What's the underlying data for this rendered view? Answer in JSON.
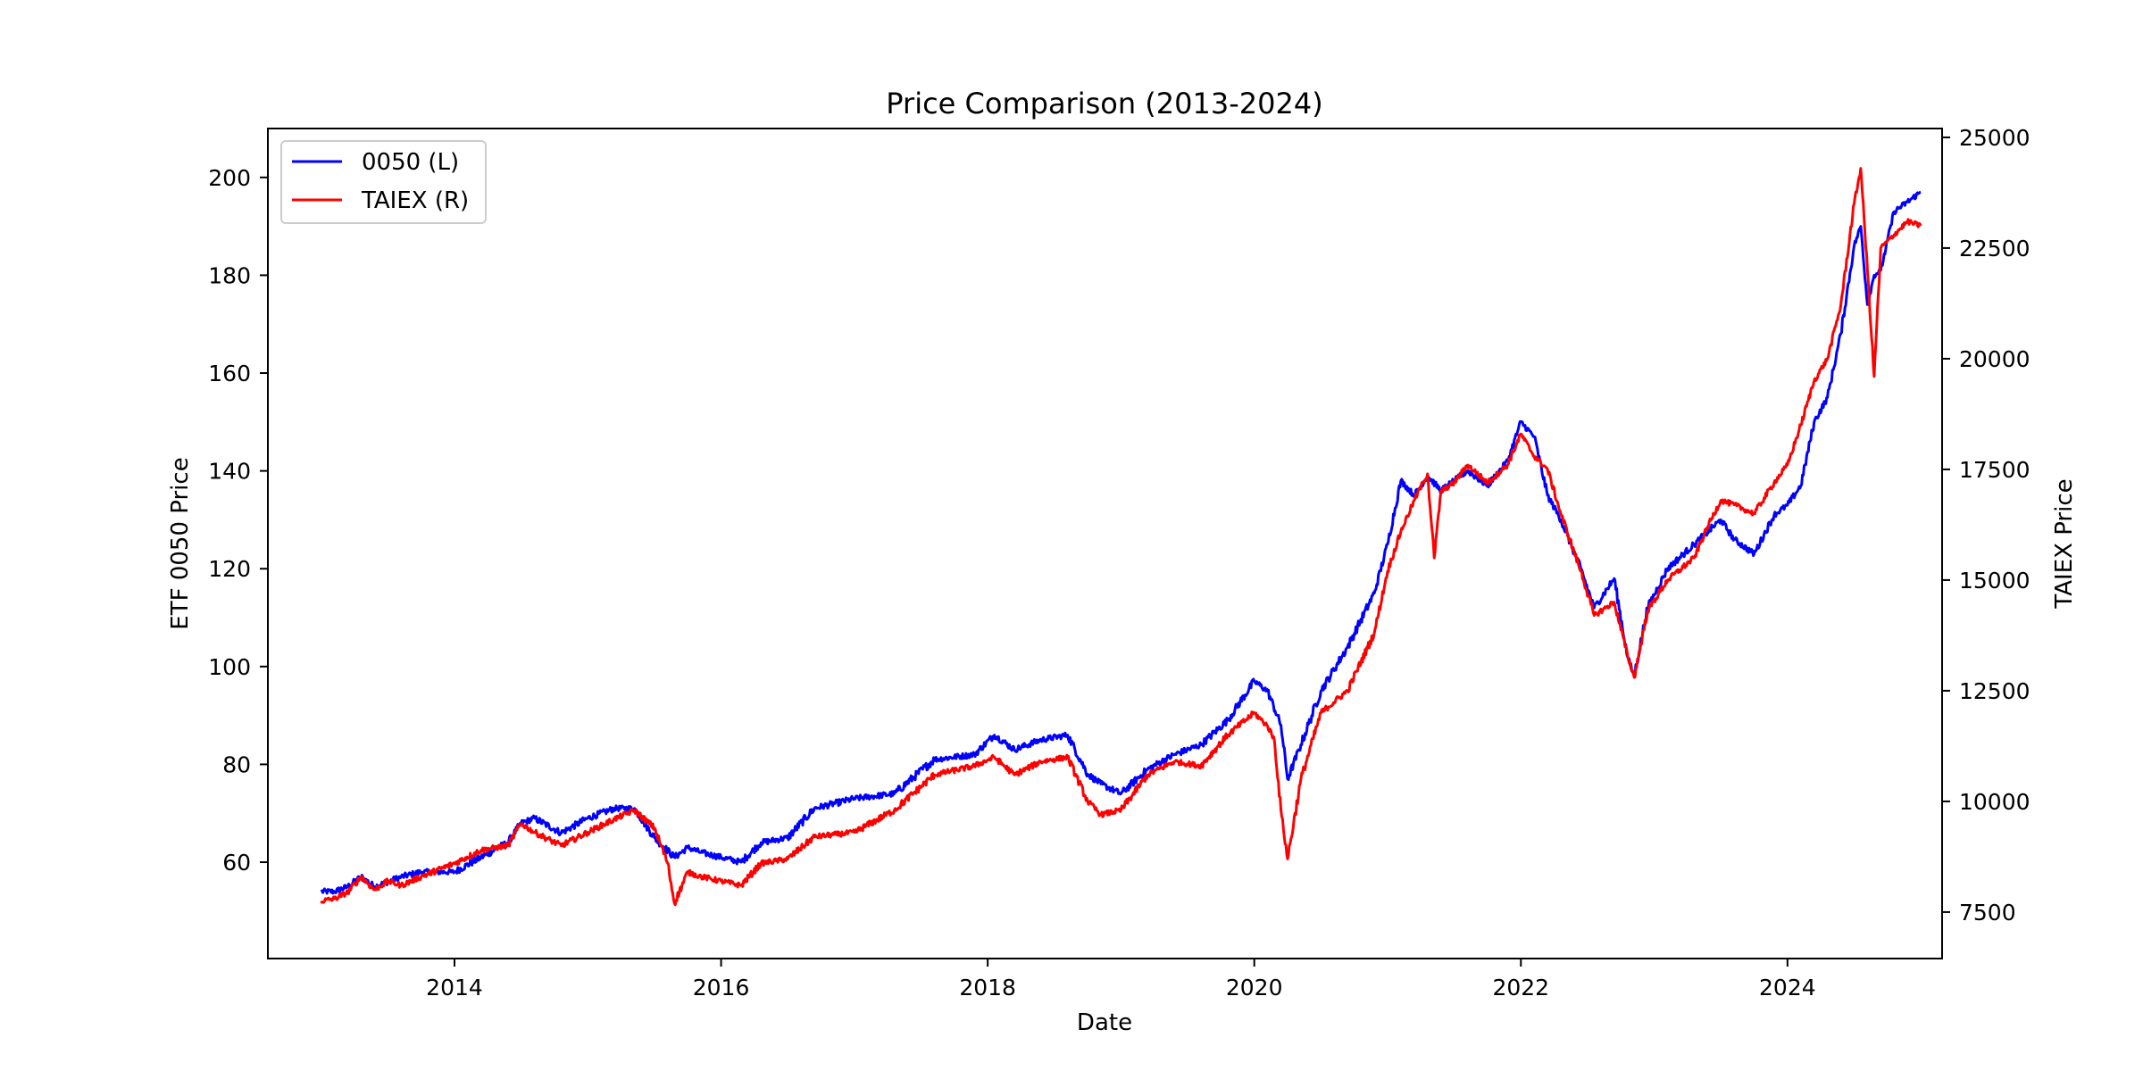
{
  "chart_data": {
    "type": "line",
    "title": "Price Comparison (2013-2024)",
    "xlabel": "Date",
    "ylabel": "ETF 0050 Price",
    "y2label": "TAIEX Price",
    "xlim": [
      2012.6,
      2025.16
    ],
    "ylim": [
      40.3,
      210.0
    ],
    "y2lim": [
      6450,
      25200
    ],
    "x_ticks": [
      2014,
      2016,
      2018,
      2020,
      2022,
      2024
    ],
    "x_tick_labels": [
      "2014",
      "2016",
      "2018",
      "2020",
      "2022",
      "2024"
    ],
    "y_ticks": [
      60,
      80,
      100,
      120,
      140,
      160,
      180,
      200
    ],
    "y_tick_labels": [
      "60",
      "80",
      "100",
      "120",
      "140",
      "160",
      "180",
      "200"
    ],
    "y2_ticks": [
      7500,
      10000,
      12500,
      15000,
      17500,
      20000,
      22500,
      25000
    ],
    "y2_tick_labels": [
      "7500",
      "10000",
      "12500",
      "15000",
      "17500",
      "20000",
      "22500",
      "25000"
    ],
    "legend_position": "upper-left",
    "series": [
      {
        "name": "0050 (L)",
        "axis": "left",
        "color": "#0000ff",
        "x": [
          2013.0,
          2013.1,
          2013.2,
          2013.3,
          2013.4,
          2013.5,
          2013.6,
          2013.75,
          2014.0,
          2014.2,
          2014.4,
          2014.5,
          2014.6,
          2014.8,
          2015.0,
          2015.2,
          2015.35,
          2015.5,
          2015.65,
          2015.75,
          2015.85,
          2016.0,
          2016.15,
          2016.3,
          2016.5,
          2016.7,
          2017.0,
          2017.3,
          2017.6,
          2017.9,
          2018.05,
          2018.2,
          2018.4,
          2018.6,
          2018.75,
          2018.85,
          2019.0,
          2019.2,
          2019.4,
          2019.6,
          2019.8,
          2020.0,
          2020.1,
          2020.2,
          2020.25,
          2020.35,
          2020.5,
          2020.7,
          2020.9,
          2021.0,
          2021.1,
          2021.2,
          2021.3,
          2021.4,
          2021.5,
          2021.6,
          2021.75,
          2021.9,
          2022.0,
          2022.1,
          2022.2,
          2022.3,
          2022.45,
          2022.55,
          2022.7,
          2022.8,
          2022.85,
          2022.95,
          2023.1,
          2023.3,
          2023.5,
          2023.6,
          2023.75,
          2023.9,
          2024.0,
          2024.1,
          2024.2,
          2024.3,
          2024.4,
          2024.5,
          2024.55,
          2024.6,
          2024.65,
          2024.7,
          2024.8,
          2024.9,
          2025.0
        ],
        "values": [
          54,
          54,
          55,
          57,
          55,
          56,
          57,
          58,
          58,
          61,
          64,
          68,
          69,
          66,
          69,
          71,
          71,
          65,
          61,
          63,
          62,
          61,
          60,
          64,
          65,
          71,
          73,
          74,
          81,
          82,
          86,
          83,
          85,
          86,
          78,
          76,
          74,
          79,
          82,
          84,
          89,
          97,
          95,
          88,
          77,
          84,
          95,
          104,
          115,
          125,
          138,
          135,
          139,
          136,
          138,
          140,
          137,
          142,
          150,
          147,
          135,
          130,
          120,
          112,
          118,
          102,
          98,
          112,
          120,
          125,
          130,
          126,
          123,
          131,
          133,
          137,
          150,
          155,
          168,
          186,
          190,
          174,
          180,
          181,
          193,
          195,
          197
        ]
      },
      {
        "name": "TAIEX (R)",
        "axis": "right",
        "color": "#ff0000",
        "x": [
          2013.0,
          2013.1,
          2013.2,
          2013.3,
          2013.4,
          2013.5,
          2013.6,
          2013.75,
          2014.0,
          2014.2,
          2014.4,
          2014.5,
          2014.6,
          2014.8,
          2015.0,
          2015.2,
          2015.35,
          2015.5,
          2015.6,
          2015.65,
          2015.75,
          2015.85,
          2016.0,
          2016.15,
          2016.3,
          2016.5,
          2016.7,
          2017.0,
          2017.3,
          2017.6,
          2017.9,
          2018.05,
          2018.2,
          2018.4,
          2018.6,
          2018.75,
          2018.85,
          2019.0,
          2019.2,
          2019.4,
          2019.6,
          2019.8,
          2020.0,
          2020.1,
          2020.15,
          2020.2,
          2020.25,
          2020.35,
          2020.5,
          2020.7,
          2020.9,
          2021.0,
          2021.1,
          2021.2,
          2021.3,
          2021.35,
          2021.4,
          2021.5,
          2021.6,
          2021.75,
          2021.9,
          2022.0,
          2022.1,
          2022.2,
          2022.3,
          2022.45,
          2022.55,
          2022.7,
          2022.8,
          2022.85,
          2022.95,
          2023.1,
          2023.3,
          2023.4,
          2023.5,
          2023.6,
          2023.75,
          2023.9,
          2024.0,
          2024.1,
          2024.2,
          2024.3,
          2024.4,
          2024.5,
          2024.55,
          2024.6,
          2024.65,
          2024.7,
          2024.8,
          2024.9,
          2025.0
        ],
        "values": [
          7750,
          7800,
          7950,
          8300,
          8000,
          8200,
          8100,
          8300,
          8600,
          8900,
          9000,
          9500,
          9300,
          9000,
          9300,
          9600,
          9800,
          9400,
          8600,
          7700,
          8400,
          8300,
          8200,
          8100,
          8600,
          8700,
          9200,
          9300,
          9800,
          10600,
          10800,
          11000,
          10600,
          10900,
          11000,
          10000,
          9700,
          9800,
          10600,
          10900,
          10800,
          11500,
          12000,
          11700,
          11400,
          9800,
          8700,
          10500,
          12000,
          12500,
          13800,
          15200,
          16100,
          16800,
          17400,
          15500,
          17000,
          17200,
          17600,
          17200,
          17600,
          18300,
          17800,
          17500,
          16500,
          15200,
          14200,
          14500,
          13300,
          12800,
          14300,
          15000,
          15500,
          16200,
          16800,
          16700,
          16500,
          17200,
          17600,
          18500,
          19500,
          20000,
          21200,
          23500,
          24300,
          22000,
          19600,
          22500,
          22800,
          23100,
          23000
        ]
      }
    ]
  }
}
